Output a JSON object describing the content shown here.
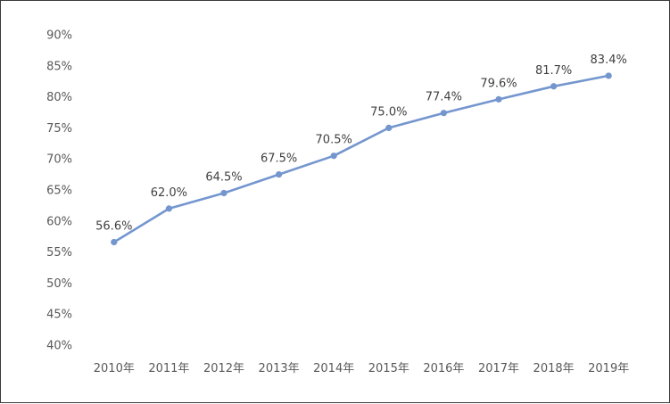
{
  "chart_data": {
    "type": "line",
    "title": "",
    "xlabel": "",
    "ylabel": "",
    "categories": [
      "2010年",
      "2011年",
      "2012年",
      "2013年",
      "2014年",
      "2015年",
      "2016年",
      "2017年",
      "2018年",
      "2019年"
    ],
    "series": [
      {
        "values": [
          56.6,
          62.0,
          64.5,
          67.5,
          70.5,
          75.0,
          77.4,
          79.6,
          81.7,
          83.4
        ],
        "data_labels": [
          "56.6%",
          "62.0%",
          "64.5%",
          "67.5%",
          "70.5%",
          "75.0%",
          "77.4%",
          "79.6%",
          "81.7%",
          "83.4%"
        ],
        "color": "#7496cf"
      }
    ],
    "ylim": [
      40,
      90
    ],
    "yticks": [
      "40%",
      "45%",
      "50%",
      "55%",
      "60%",
      "65%",
      "70%",
      "75%",
      "80%",
      "85%",
      "90%"
    ],
    "grid": false,
    "legend": "none",
    "border_color": "#3a3a3a"
  }
}
